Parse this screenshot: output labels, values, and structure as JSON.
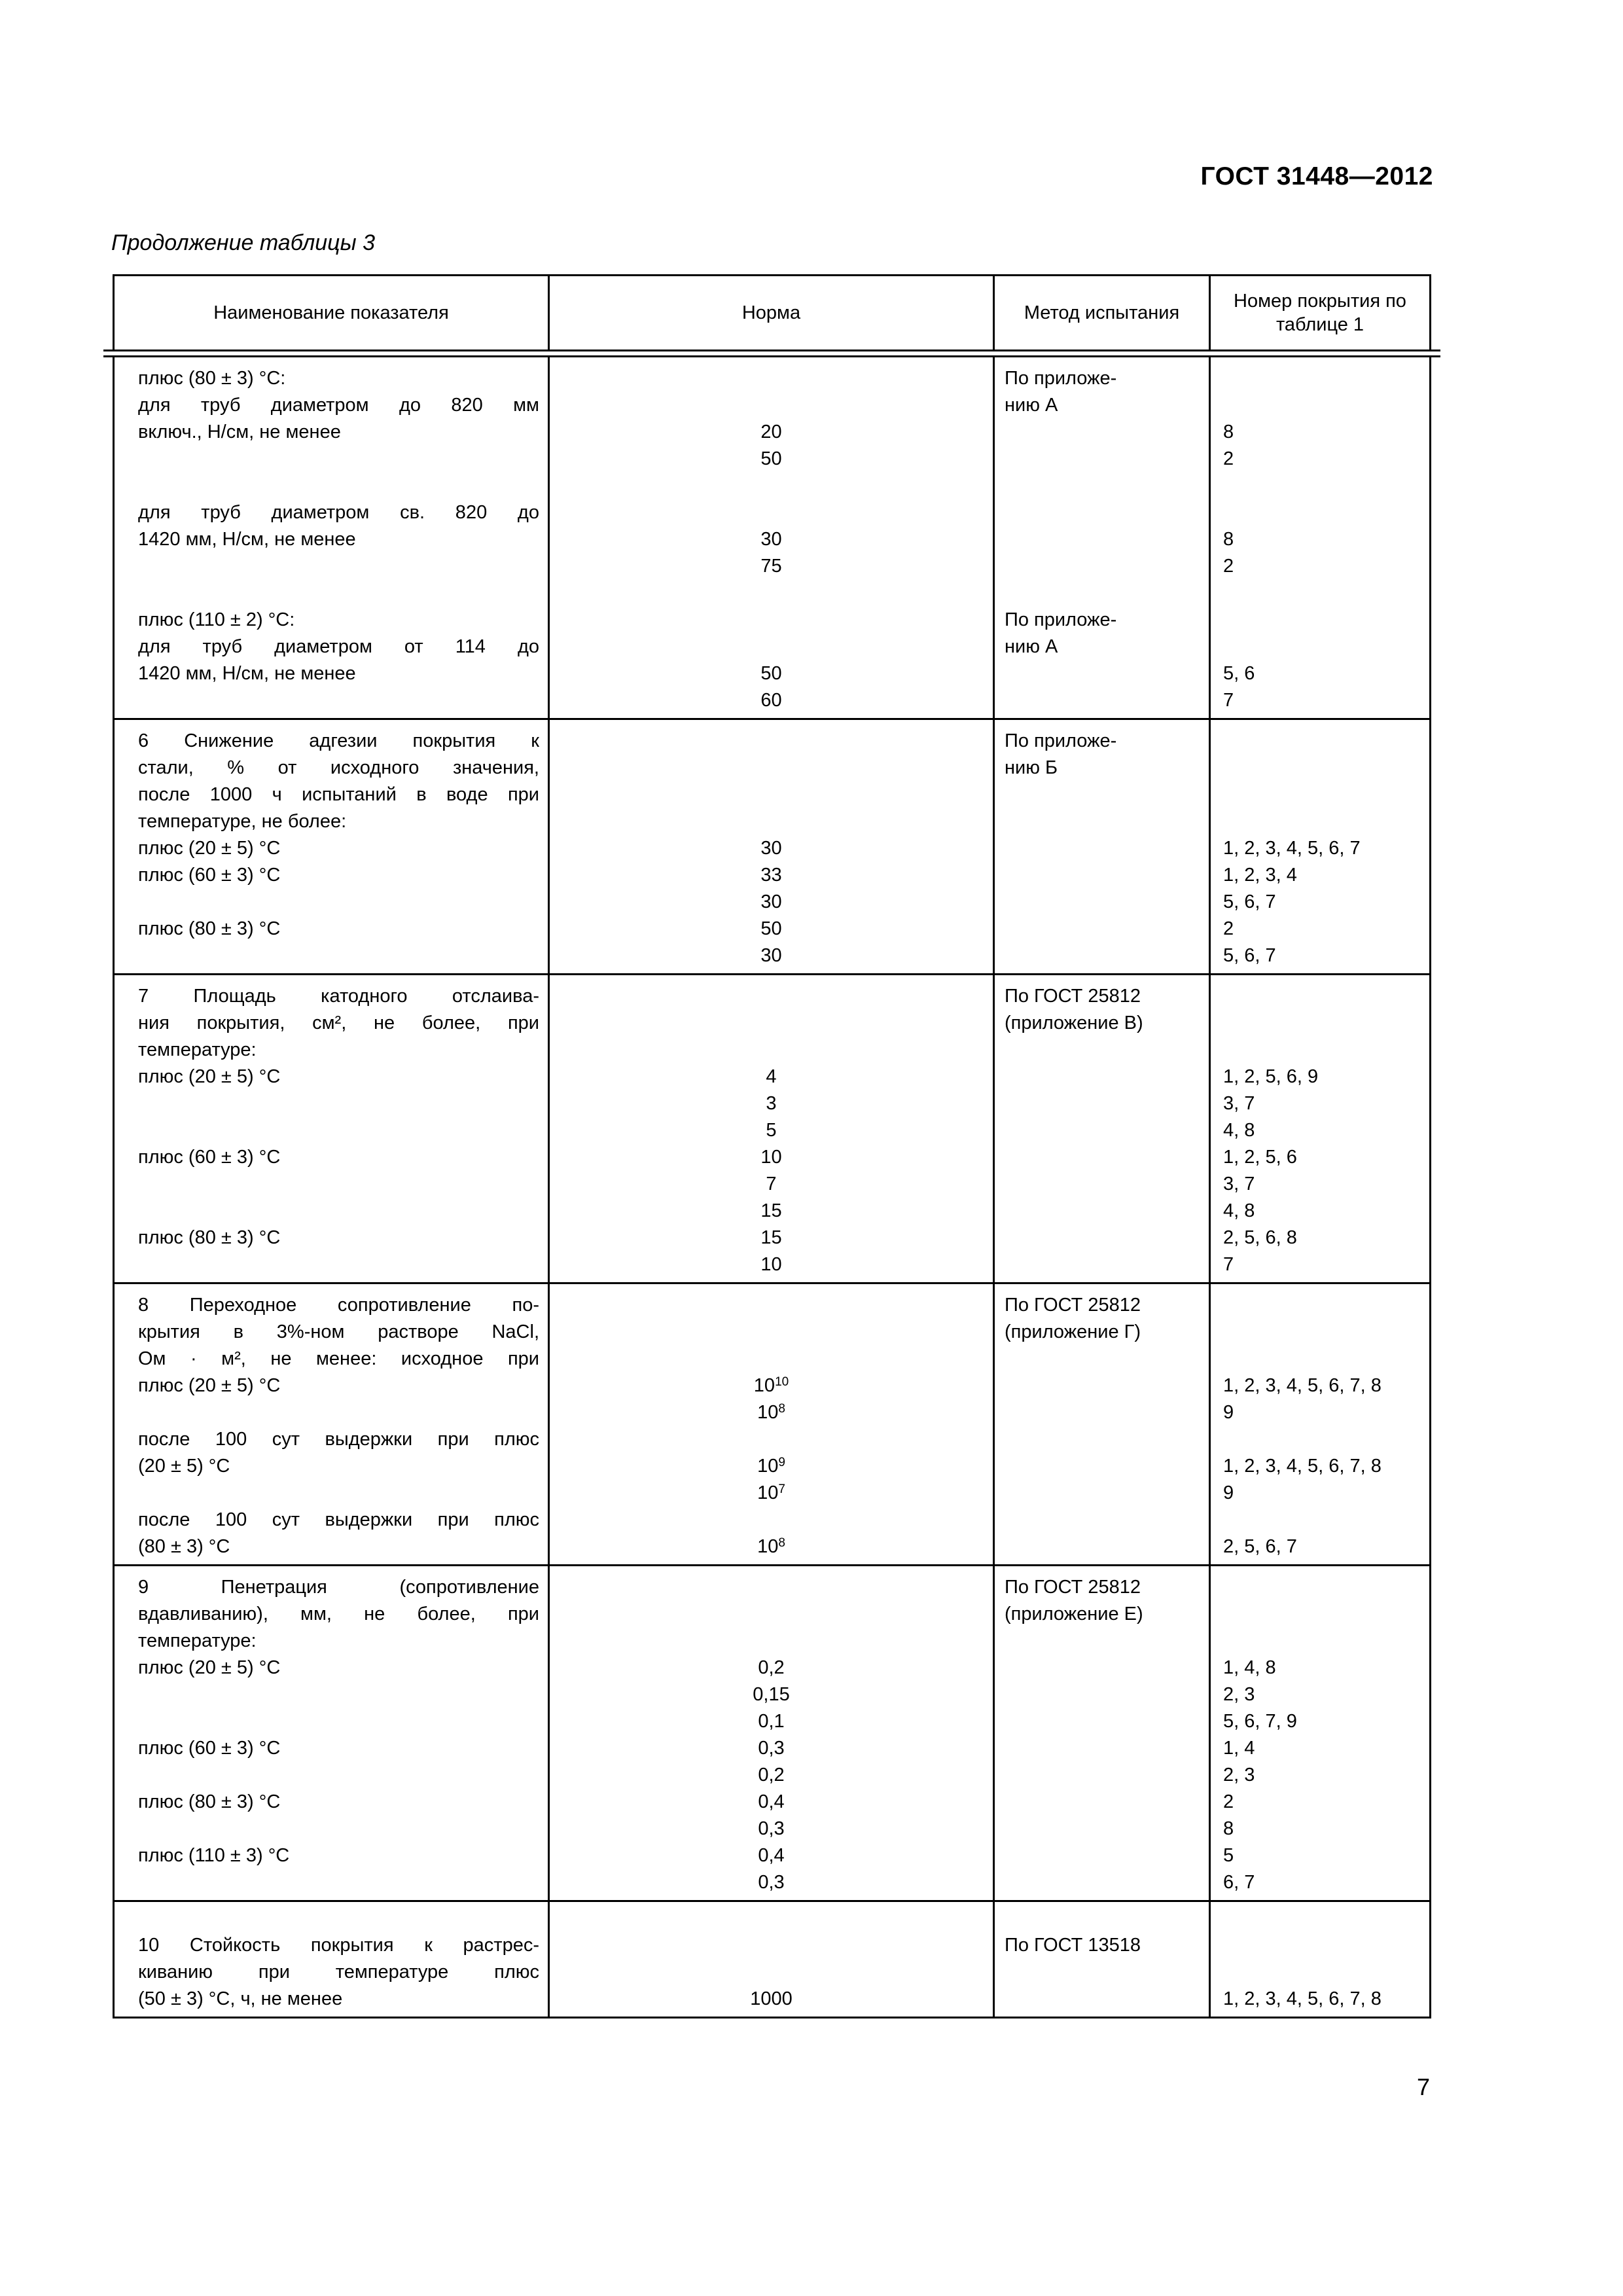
{
  "page": {
    "doc_number": "ГОСТ 31448—2012",
    "table_caption": "Продолжение таблицы 3",
    "page_number": "7"
  },
  "table": {
    "headers": [
      "Наименование показателя",
      "Норма",
      "Метод испытания",
      "Номер покрытия по таблице 1"
    ],
    "rows": [
      {
        "name": "item-5-continuation",
        "lines": [
          {
            "c1": "плюс (80 ± 3) °С:",
            "c3": "По приложе-"
          },
          {
            "c1": "для труб диаметром до 820 мм",
            "j": true,
            "c3": "нию А"
          },
          {
            "c1": "включ., Н/см, не менее",
            "c2": "20",
            "c4": "8"
          },
          {
            "c2": "50",
            "c4": "2"
          },
          {},
          {
            "c1": "для труб диаметром св. 820 до",
            "j": true
          },
          {
            "c1": "1420 мм, Н/см, не менее",
            "c2": "30",
            "c4": "8"
          },
          {
            "c2": "75",
            "c4": "2"
          },
          {},
          {
            "c1": "плюс (110 ± 2) °С:",
            "c3": "По приложе-"
          },
          {
            "c1": "для труб диаметром от 114 до",
            "j": true,
            "c3": "нию А"
          },
          {
            "c1": "1420 мм, Н/см, не менее",
            "c2": "50",
            "c4": "5, 6"
          },
          {
            "c2": "60",
            "c4": "7"
          }
        ]
      },
      {
        "name": "item-6-adhesion-decrease",
        "lines": [
          {
            "c1": "6 Снижение адгезии покрытия к",
            "j": true,
            "c3": "По приложе-"
          },
          {
            "c1": "стали, % от исходного значения,",
            "j": true,
            "c3": "нию Б"
          },
          {
            "c1": "после 1000 ч испытаний в воде при",
            "j": true
          },
          {
            "c1": "температуре, не более:"
          },
          {
            "c1": "плюс (20 ± 5) °С",
            "c2": "30",
            "c4": "1, 2, 3, 4, 5, 6, 7"
          },
          {
            "c1": "плюс (60 ± 3) °С",
            "c2": "33",
            "c4": "1, 2, 3, 4"
          },
          {
            "c2": "30",
            "c4": "5, 6, 7"
          },
          {
            "c1": "плюс (80 ± 3) °С",
            "c2": "50",
            "c4": "2"
          },
          {
            "c2": "30",
            "c4": "5, 6, 7"
          }
        ]
      },
      {
        "name": "item-7-cathodic-disbonding",
        "lines": [
          {
            "c1": "7 Площадь катодного отслаива-",
            "j": true,
            "c3": "По ГОСТ 25812"
          },
          {
            "c1": "ния покрытия, см², не более, при",
            "j": true,
            "c3": "(приложение В)"
          },
          {
            "c1": "температуре:"
          },
          {
            "c1": "плюс (20 ± 5) °С",
            "c2": "4",
            "c4": "1, 2, 5, 6, 9"
          },
          {
            "c2": "3",
            "c4": "3, 7"
          },
          {
            "c2": "5",
            "c4": "4, 8"
          },
          {
            "c1": "плюс (60 ± 3) °С",
            "c2": "10",
            "c4": "1, 2, 5, 6"
          },
          {
            "c2": "7",
            "c4": "3, 7"
          },
          {
            "c2": "15",
            "c4": "4, 8"
          },
          {
            "c1": "плюс (80 ± 3) °С",
            "c2": "15",
            "c4": "2, 5, 6, 8"
          },
          {
            "c2": "10",
            "c4": "7"
          }
        ]
      },
      {
        "name": "item-8-insulation-resistance",
        "lines": [
          {
            "c1": "8 Переходное сопротивление по-",
            "j": true,
            "c3": "По ГОСТ 25812"
          },
          {
            "c1": "крытия в 3%-ном растворе NaCl,",
            "j": true,
            "c3": "(приложение Г)"
          },
          {
            "c1": "Ом · м², не менее: исходное при",
            "j": true
          },
          {
            "c1": "плюс (20 ± 5) °С",
            "c2": "10^10",
            "c4": "1, 2, 3, 4, 5, 6, 7, 8"
          },
          {
            "c2": "10^8",
            "c4": "9"
          },
          {
            "c1": "после 100 сут выдержки при плюс",
            "j": true
          },
          {
            "c1": "(20 ± 5) °С",
            "c2": "10^9",
            "c4": "1, 2, 3, 4, 5, 6, 7, 8"
          },
          {
            "c2": "10^7",
            "c4": "9"
          },
          {
            "c1": "после 100 сут выдержки при плюс",
            "j": true
          },
          {
            "c1": "(80 ± 3) °С",
            "c2": "10^8",
            "c4": "2, 5, 6, 7"
          }
        ]
      },
      {
        "name": "item-9-penetration",
        "lines": [
          {
            "c1": "9 Пенетрация (сопротивление",
            "j": true,
            "c3": "По ГОСТ 25812"
          },
          {
            "c1": "вдавливанию), мм, не более, при",
            "j": true,
            "c3": "(приложение Е)"
          },
          {
            "c1": "температуре:"
          },
          {
            "c1": "плюс (20 ± 5) °С",
            "c2": "0,2",
            "c4": "1, 4, 8"
          },
          {
            "c2": "0,15",
            "c4": "2, 3"
          },
          {
            "c2": "0,1",
            "c4": "5, 6, 7, 9"
          },
          {
            "c1": "плюс (60 ± 3) °С",
            "c2": "0,3",
            "c4": "1, 4"
          },
          {
            "c2": "0,2",
            "c4": "2, 3"
          },
          {
            "c1": "плюс (80 ± 3) °С",
            "c2": "0,4",
            "c4": "2"
          },
          {
            "c2": "0,3",
            "c4": "8"
          },
          {
            "c1": "плюс (110 ± 3) °С",
            "c2": "0,4",
            "c4": "5"
          },
          {
            "c2": "0,3",
            "c4": "6, 7"
          }
        ]
      },
      {
        "name": "item-10-cracking-resistance",
        "extra_top": true,
        "lines": [
          {
            "c1": "10 Стойкость покрытия к растрес-",
            "j": true,
            "c3": "По ГОСТ 13518"
          },
          {
            "c1": "киванию при температуре плюс",
            "j": true
          },
          {
            "c1": "(50 ± 3) °С, ч, не менее",
            "c2": "1000",
            "c4": "1, 2, 3, 4, 5, 6, 7, 8"
          }
        ]
      }
    ]
  }
}
